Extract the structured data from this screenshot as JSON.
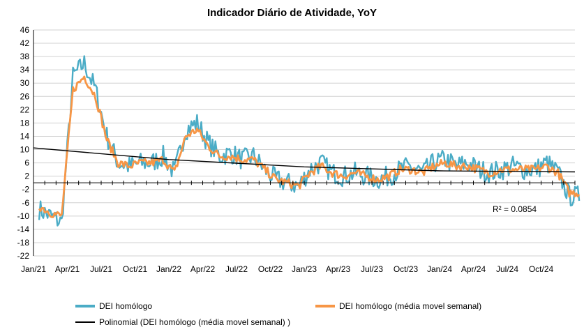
{
  "chart_data": {
    "type": "line",
    "title": "Indicador Diário de Atividade, YoY",
    "xlabel": "",
    "ylabel": "",
    "ylim": [
      -22,
      46
    ],
    "yticks": [
      46,
      42,
      38,
      34,
      30,
      26,
      22,
      18,
      14,
      10,
      6,
      2,
      -2,
      -6,
      -10,
      -14,
      -18,
      -22
    ],
    "x_tick_labels": [
      "Jan/21",
      "Apr/21",
      "Jul/21",
      "Oct/21",
      "Jan/22",
      "Apr/22",
      "Jul/22",
      "Oct/22",
      "Jan/23",
      "Apr/23",
      "Jul/23",
      "Oct/23",
      "Jan/24",
      "Apr/24",
      "Jul/24",
      "Oct/24"
    ],
    "x_range": [
      "Jan/21",
      "Dec/24"
    ],
    "grid": "horizontal",
    "legend_position": "bottom",
    "annotation": "R² = 0.0854",
    "series": [
      {
        "name": "DEI homólogo",
        "color": "#4BACC6",
        "note": "daily values, approximate monthly profile",
        "x": [
          "Jan/21",
          "Feb/21",
          "Mar/21",
          "Apr/21",
          "May/21",
          "Jun/21",
          "Jul/21",
          "Aug/21",
          "Sep/21",
          "Oct/21",
          "Nov/21",
          "Dec/21",
          "Jan/22",
          "Feb/22",
          "Mar/22",
          "Apr/22",
          "May/22",
          "Jun/22",
          "Jul/22",
          "Aug/22",
          "Sep/22",
          "Oct/22",
          "Nov/22",
          "Dec/22",
          "Jan/23",
          "Feb/23",
          "Mar/23",
          "Apr/23",
          "May/23",
          "Jun/23",
          "Jul/23",
          "Aug/23",
          "Sep/23",
          "Oct/23",
          "Nov/23",
          "Dec/23",
          "Jan/24",
          "Feb/24",
          "Mar/24",
          "Apr/24",
          "May/24",
          "Jun/24",
          "Jul/24",
          "Aug/24",
          "Sep/24",
          "Oct/24",
          "Nov/24",
          "Dec/24"
        ],
        "values": [
          -8,
          -10,
          -12,
          32,
          36,
          28,
          14,
          6,
          5,
          6,
          6,
          8,
          3,
          16,
          18,
          12,
          8,
          9,
          7,
          8,
          4,
          1,
          0,
          -1,
          4,
          6,
          3,
          2,
          3,
          2,
          1,
          2,
          4,
          5,
          3,
          6,
          7,
          5,
          6,
          4,
          3,
          4,
          5,
          4,
          4,
          6,
          3,
          -4
        ]
      },
      {
        "name": "DEI homólogo (média movel semanal)",
        "color": "#F79646",
        "x": [
          "Jan/21",
          "Feb/21",
          "Mar/21",
          "Apr/21",
          "May/21",
          "Jun/21",
          "Jul/21",
          "Aug/21",
          "Sep/21",
          "Oct/21",
          "Nov/21",
          "Dec/21",
          "Jan/22",
          "Feb/22",
          "Mar/22",
          "Apr/22",
          "May/22",
          "Jun/22",
          "Jul/22",
          "Aug/22",
          "Sep/22",
          "Oct/22",
          "Nov/22",
          "Dec/22",
          "Jan/23",
          "Feb/23",
          "Mar/23",
          "Apr/23",
          "May/23",
          "Jun/23",
          "Jul/23",
          "Aug/23",
          "Sep/23",
          "Oct/23",
          "Nov/23",
          "Dec/23",
          "Jan/24",
          "Feb/24",
          "Mar/24",
          "Apr/24",
          "May/24",
          "Jun/24",
          "Jul/24",
          "Aug/24",
          "Sep/24",
          "Oct/24",
          "Nov/24",
          "Dec/24"
        ],
        "values": [
          -7,
          -9,
          -10,
          28,
          32,
          26,
          13,
          6,
          5,
          6,
          6,
          7,
          3,
          14,
          16,
          11,
          8,
          8,
          7,
          7,
          4,
          1,
          0,
          -1,
          3,
          5,
          3,
          2,
          3,
          2,
          1,
          2,
          4,
          4,
          3,
          5,
          6,
          5,
          5,
          4,
          3,
          4,
          4,
          4,
          4,
          5,
          3,
          -3
        ]
      },
      {
        "name": "Polinomial (DEI homólogo (média movel semanal) )",
        "color": "#000000",
        "x": [
          "Jan/21",
          "Jan/22",
          "Jan/23",
          "Jan/24",
          "Dec/24"
        ],
        "values": [
          10.5,
          7.0,
          4.8,
          3.6,
          3.3
        ]
      }
    ]
  }
}
